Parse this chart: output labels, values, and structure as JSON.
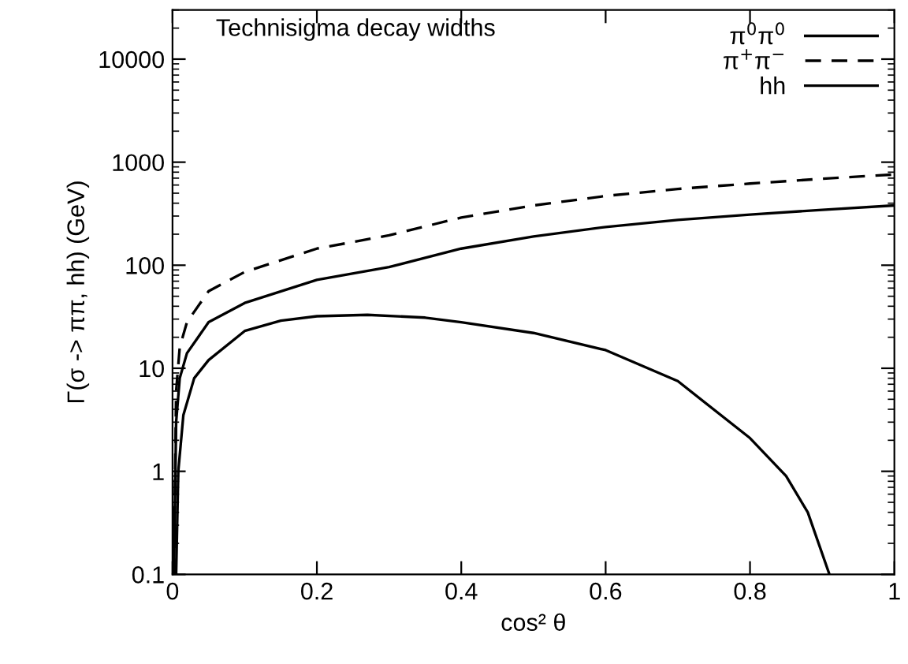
{
  "chart_data": {
    "type": "line",
    "title": "Technisigma decay widths",
    "xlabel": "cos² θ",
    "ylabel": "Γ(σ -> ππ, hh) (GeV)",
    "log": "y",
    "xlim": [
      0,
      1
    ],
    "ylim": [
      0.1,
      30000
    ],
    "xticks": [
      0,
      0.2,
      0.4,
      0.6,
      0.8,
      1
    ],
    "yticks": [
      0.1,
      1,
      10,
      100,
      1000,
      10000
    ],
    "grid": false,
    "legend": "top right",
    "marker": "none",
    "series": [
      {
        "name": "π$^{0}$π$^{0}$",
        "color": "#000000",
        "line_style": "solid",
        "x": [
          0.002,
          0.005,
          0.01,
          0.02,
          0.05,
          0.1,
          0.2,
          0.3,
          0.4,
          0.5,
          0.6,
          0.7,
          0.8,
          0.9,
          1.0
        ],
        "values": [
          0.1,
          3,
          8,
          14,
          28,
          43,
          72,
          96,
          145,
          190,
          235,
          275,
          310,
          345,
          380
        ]
      },
      {
        "name": "π$^{+}$π$^{−}$",
        "color": "#000000",
        "line_style": "dashed",
        "x": [
          0.002,
          0.005,
          0.01,
          0.02,
          0.05,
          0.1,
          0.2,
          0.3,
          0.4,
          0.5,
          0.6,
          0.7,
          0.8,
          0.9,
          1.0
        ],
        "values": [
          0.1,
          6,
          16,
          28,
          56,
          86,
          145,
          195,
          290,
          380,
          470,
          550,
          620,
          690,
          760
        ]
      },
      {
        "name": "hh",
        "color": "#000000",
        "line_style": "solid",
        "x": [
          0.005,
          0.008,
          0.015,
          0.03,
          0.05,
          0.1,
          0.15,
          0.2,
          0.27,
          0.35,
          0.4,
          0.5,
          0.6,
          0.7,
          0.8,
          0.85,
          0.88,
          0.91
        ],
        "values": [
          0.1,
          1,
          3.5,
          8,
          12,
          23,
          29,
          32,
          33,
          31,
          28,
          22,
          15,
          7.5,
          2.1,
          0.9,
          0.4,
          0.1
        ]
      }
    ]
  }
}
